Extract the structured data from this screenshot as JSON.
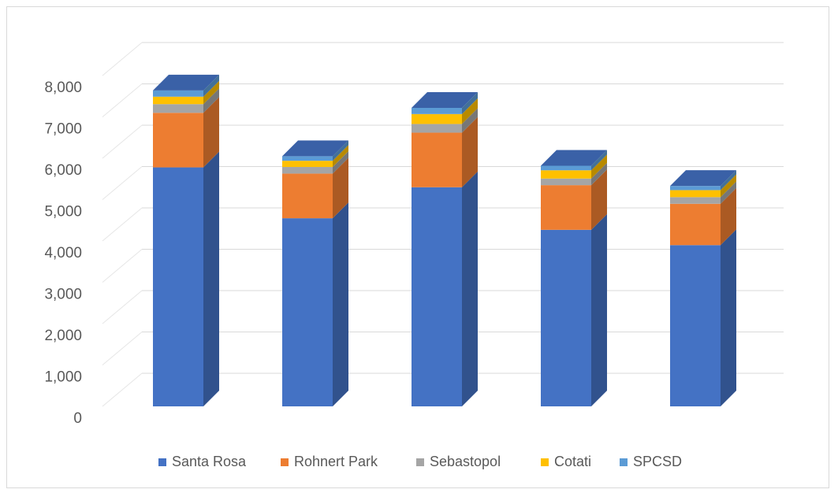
{
  "chart_data": {
    "type": "bar",
    "stacked": true,
    "three_d": true,
    "categories": [
      "",
      "",
      "",
      "",
      ""
    ],
    "series": [
      {
        "name": "Santa Rosa",
        "color": "#4472C4",
        "values": [
          5780,
          4550,
          5300,
          4270,
          3900
        ]
      },
      {
        "name": "Rohnert Park",
        "color": "#ED7D31",
        "values": [
          1320,
          1080,
          1320,
          1080,
          1000
        ]
      },
      {
        "name": "Sebastopol",
        "color": "#A5A5A5",
        "values": [
          210,
          160,
          210,
          160,
          160
        ]
      },
      {
        "name": "Cotati",
        "color": "#FFC000",
        "values": [
          180,
          150,
          240,
          200,
          170
        ]
      },
      {
        "name": "SPCSD",
        "color": "#5B9BD5",
        "values": [
          150,
          110,
          150,
          110,
          100
        ]
      }
    ],
    "ylim": [
      0,
      8000
    ],
    "yticks": [
      0,
      1000,
      2000,
      3000,
      4000,
      5000,
      6000,
      7000,
      8000
    ],
    "ytick_labels": [
      "0",
      "1,000",
      "2,000",
      "3,000",
      "4,000",
      "5,000",
      "6,000",
      "7,000",
      "8,000"
    ],
    "title": "",
    "xlabel": "",
    "ylabel": "",
    "grid": true,
    "legend_position": "bottom"
  }
}
